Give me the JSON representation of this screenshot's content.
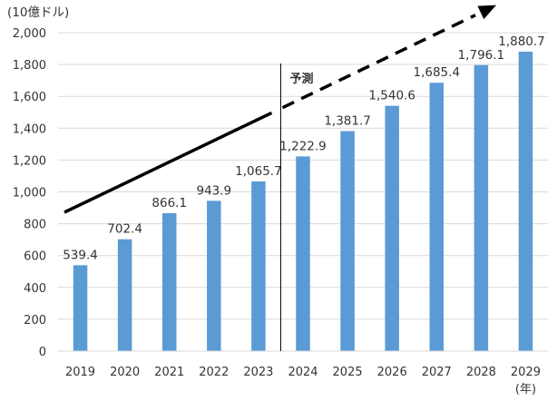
{
  "chart_data": {
    "type": "bar",
    "unit_label": "(10億ドル)",
    "x_unit_label": "(年)",
    "categories": [
      "2019",
      "2020",
      "2021",
      "2022",
      "2023",
      "2024",
      "2025",
      "2026",
      "2027",
      "2028",
      "2029"
    ],
    "values": [
      539.4,
      702.4,
      866.1,
      943.9,
      1065.7,
      1222.9,
      1381.7,
      1540.6,
      1685.4,
      1796.1,
      1880.7
    ],
    "data_labels": [
      "539.4",
      "702.4",
      "866.1",
      "943.9",
      "1,065.7",
      "1,222.9",
      "1,381.7",
      "1,540.6",
      "1,685.4",
      "1,796.1",
      "1,880.7"
    ],
    "ylim": [
      0,
      2000
    ],
    "yticks": [
      0,
      200,
      400,
      600,
      800,
      1000,
      1200,
      1400,
      1600,
      1800,
      2000
    ],
    "ytick_labels": [
      "0",
      "200",
      "400",
      "600",
      "800",
      "1,000",
      "1,200",
      "1,400",
      "1,600",
      "1,800",
      "2,000"
    ],
    "grid": true,
    "bar_color": "#5b9bd5",
    "forecast_label": "予測",
    "forecast_start": "2024",
    "trend_color": "#000000"
  }
}
